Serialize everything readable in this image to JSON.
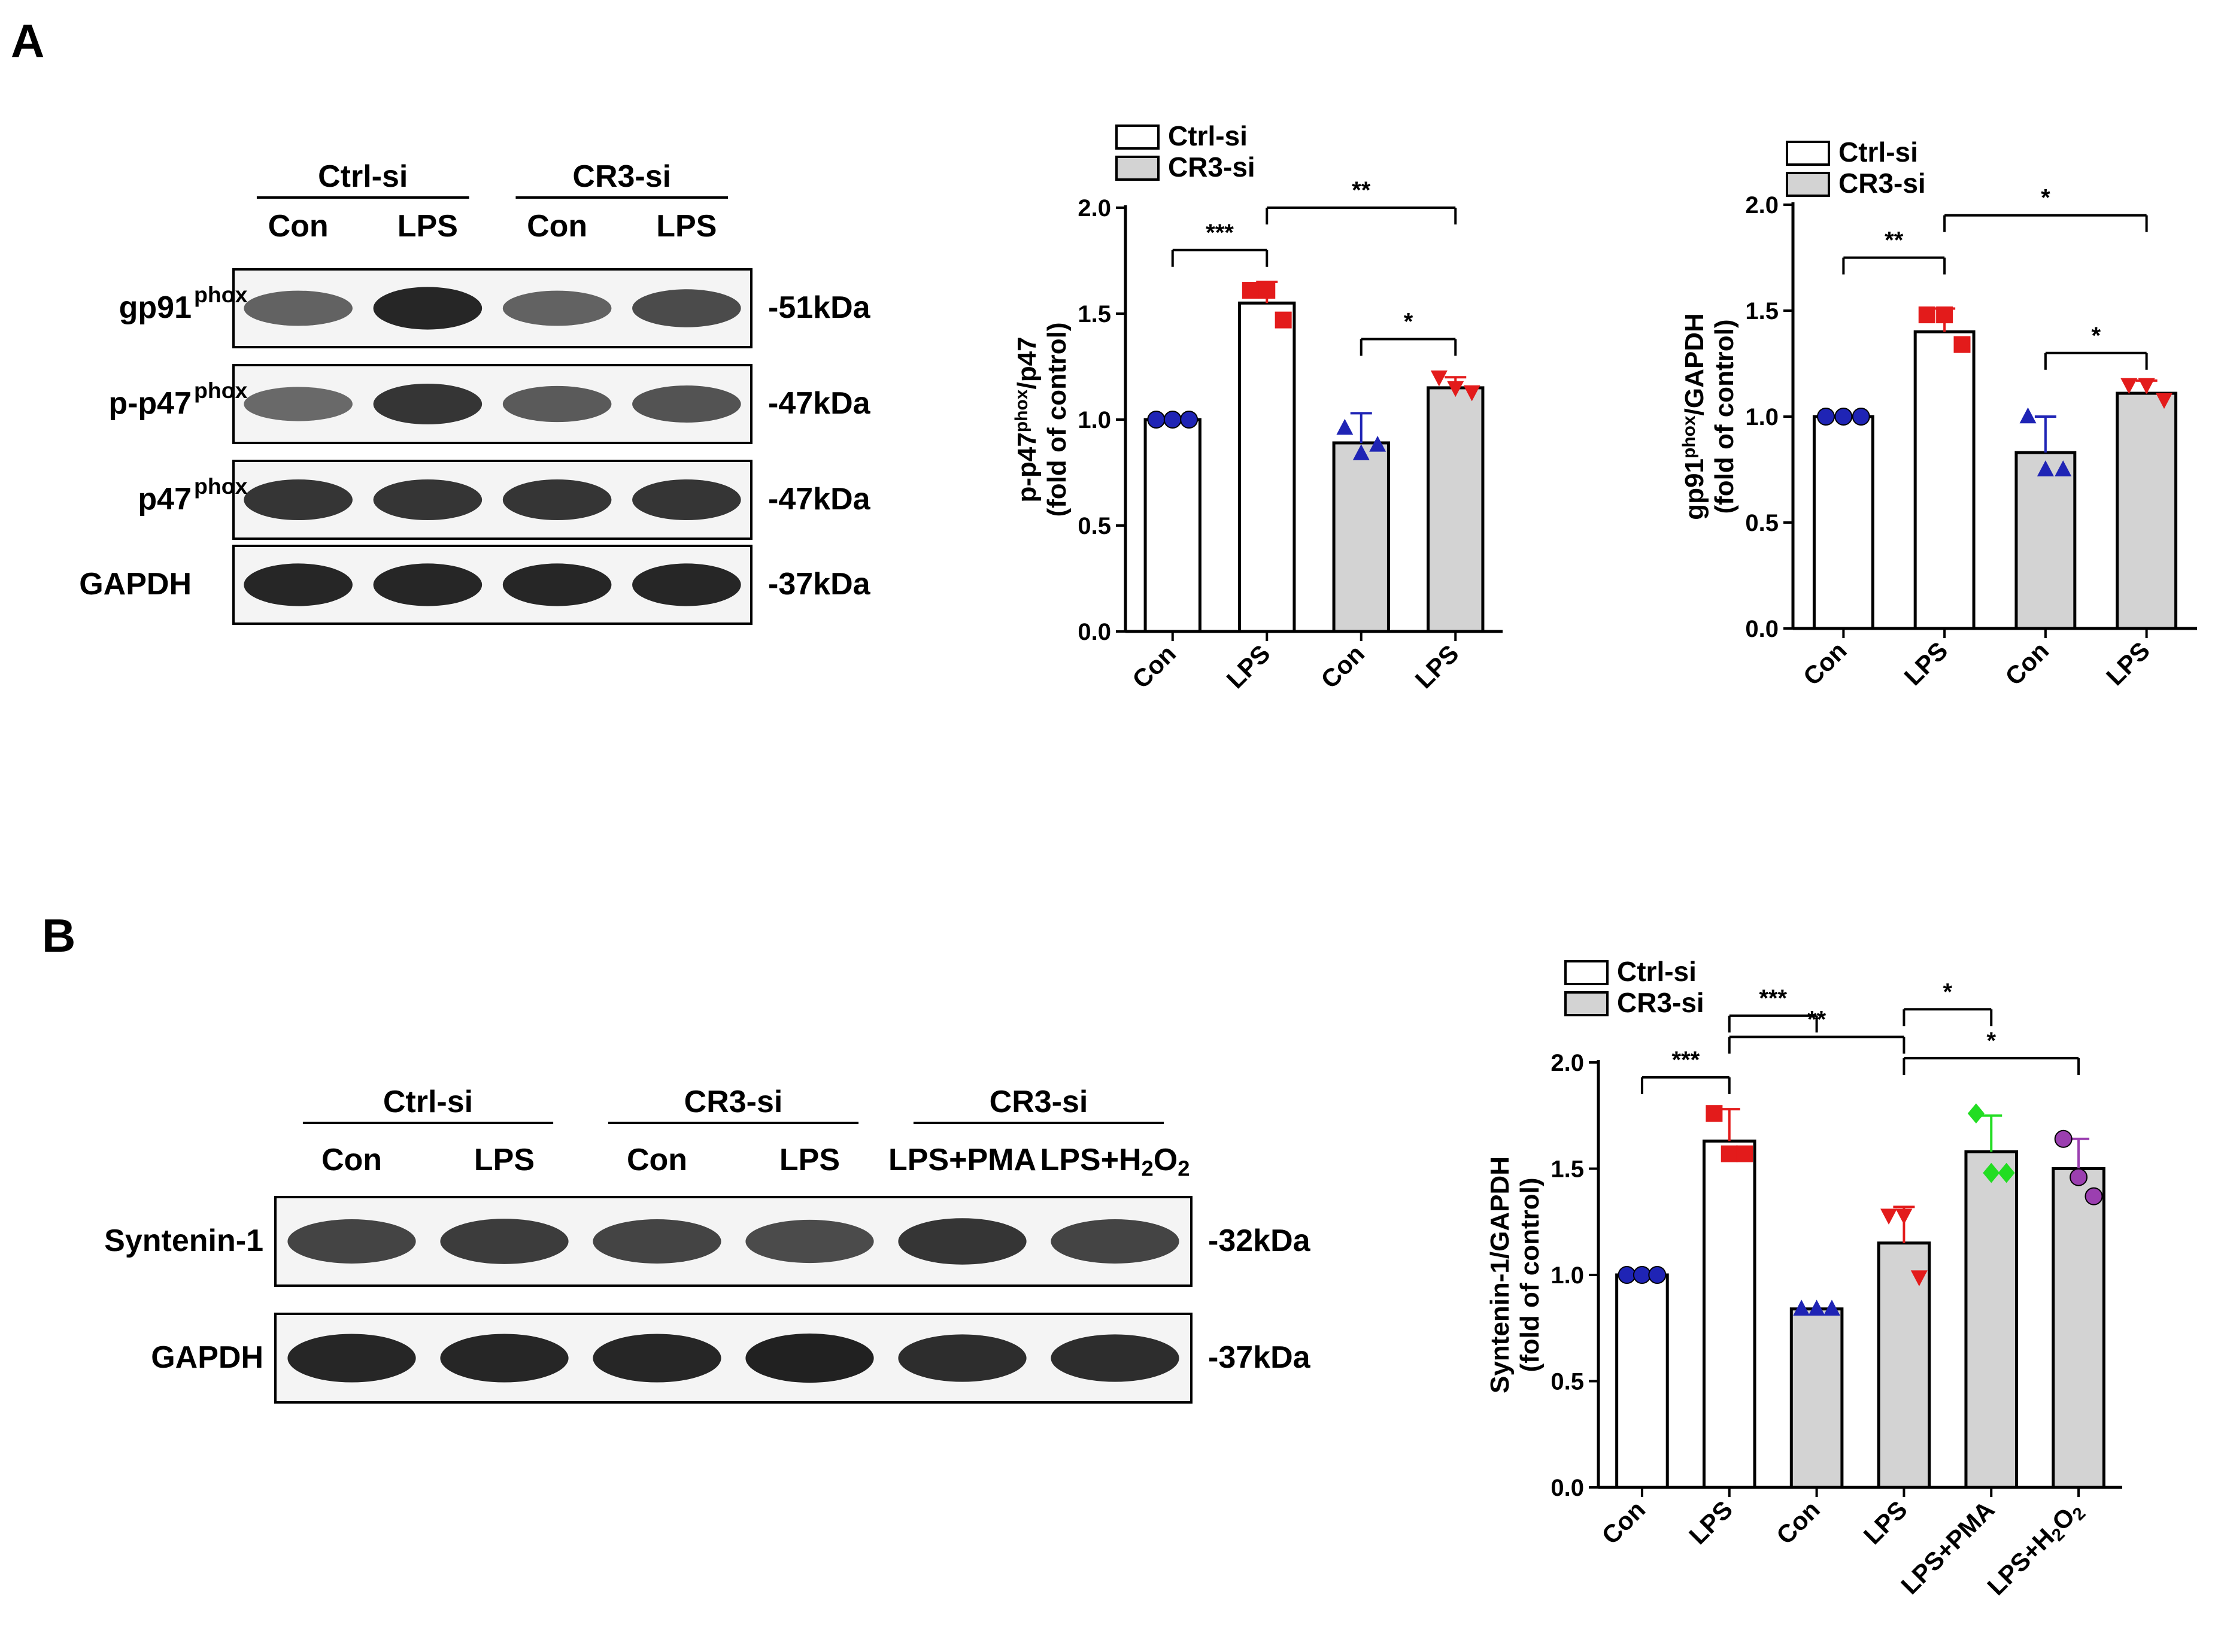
{
  "panel_a": {
    "label": "A",
    "blot": {
      "groups": [
        {
          "name": "Ctrl-si",
          "lanes": [
            "Con",
            "LPS"
          ]
        },
        {
          "name": "CR3-si",
          "lanes": [
            "Con",
            "LPS"
          ]
        }
      ],
      "rows": [
        {
          "protein": "gp91",
          "superscript": "phox",
          "kda": "-51kDa",
          "intensity": [
            0.55,
            0.95,
            0.55,
            0.7
          ]
        },
        {
          "protein": "p-p47",
          "superscript": "phox",
          "kda": "-47kDa",
          "intensity": [
            0.5,
            0.85,
            0.6,
            0.65
          ]
        },
        {
          "protein": "p47",
          "superscript": "phox",
          "kda": "-47kDa",
          "intensity": [
            0.85,
            0.85,
            0.85,
            0.85
          ]
        },
        {
          "protein": "GAPDH",
          "superscript": "",
          "kda": "-37kDa",
          "intensity": [
            0.95,
            0.95,
            0.95,
            0.95
          ]
        }
      ]
    }
  },
  "panel_b": {
    "label": "B",
    "blot": {
      "groups": [
        {
          "name": "Ctrl-si",
          "lanes": [
            "Con",
            "LPS"
          ]
        },
        {
          "name": "CR3-si",
          "lanes": [
            "Con",
            "LPS"
          ]
        },
        {
          "name": "CR3-si",
          "lanes": [
            "LPS+PMA",
            "LPS+H2O2"
          ]
        }
      ],
      "rows": [
        {
          "protein": "Syntenin-1",
          "superscript": "",
          "kda": "-32kDa",
          "intensity": [
            0.75,
            0.8,
            0.75,
            0.7,
            0.85,
            0.75
          ]
        },
        {
          "protein": "GAPDH",
          "superscript": "",
          "kda": "-37kDa",
          "intensity": [
            0.95,
            0.95,
            0.95,
            0.98,
            0.9,
            0.9
          ]
        }
      ]
    }
  },
  "chart_data": [
    {
      "type": "bar",
      "ylabel_lines": [
        "p-p47phox/p47",
        "(fold of control)"
      ],
      "categories": [
        "Con",
        "LPS",
        "Con",
        "LPS"
      ],
      "groups": [
        "Ctrl-si",
        "Ctrl-si",
        "CR3-si",
        "CR3-si"
      ],
      "values": [
        1.0,
        1.55,
        0.89,
        1.15
      ],
      "errors": [
        0.0,
        0.1,
        0.14,
        0.05
      ],
      "points": [
        [
          1.0,
          1.0,
          1.0
        ],
        [
          1.61,
          1.61,
          1.47
        ],
        [
          0.96,
          0.84,
          0.88
        ],
        [
          1.2,
          1.15,
          1.13
        ]
      ],
      "markers": [
        "circle",
        "square",
        "triangle-up",
        "triangle-down"
      ],
      "marker_colors": [
        "#1f24b5",
        "#e31b1b",
        "#1f24b5",
        "#e31b1b"
      ],
      "ylim": [
        0,
        2.0
      ],
      "yticks": [
        "0.0",
        "0.5",
        "1.0",
        "1.5",
        "2.0"
      ],
      "legend": [
        {
          "label": "Ctrl-si",
          "fill": "#ffffff"
        },
        {
          "label": "CR3-si",
          "fill": "#d3d3d3"
        }
      ],
      "legend_position": "top-left",
      "significance": [
        {
          "from": 0,
          "to": 1,
          "label": "***",
          "y": 1.8
        },
        {
          "from": 1,
          "to": 3,
          "label": "**",
          "y": 2.0
        },
        {
          "from": 2,
          "to": 3,
          "label": "*",
          "y": 1.38
        }
      ]
    },
    {
      "type": "bar",
      "ylabel_lines": [
        "gp91phox/GAPDH",
        "(fold of control)"
      ],
      "categories": [
        "Con",
        "LPS",
        "Con",
        "LPS"
      ],
      "groups": [
        "Ctrl-si",
        "Ctrl-si",
        "CR3-si",
        "CR3-si"
      ],
      "values": [
        1.0,
        1.4,
        0.83,
        1.11
      ],
      "errors": [
        0.0,
        0.11,
        0.17,
        0.06
      ],
      "points": [
        [
          1.0,
          1.0,
          1.0
        ],
        [
          1.48,
          1.48,
          1.34
        ],
        [
          1.0,
          0.75,
          0.75
        ],
        [
          1.15,
          1.15,
          1.08
        ]
      ],
      "markers": [
        "circle",
        "square",
        "triangle-up",
        "triangle-down"
      ],
      "marker_colors": [
        "#1f24b5",
        "#e31b1b",
        "#1f24b5",
        "#e31b1b"
      ],
      "ylim": [
        0,
        2.0
      ],
      "yticks": [
        "0.0",
        "0.5",
        "1.0",
        "1.5",
        "2.0"
      ],
      "legend": [
        {
          "label": "Ctrl-si",
          "fill": "#ffffff"
        },
        {
          "label": "CR3-si",
          "fill": "#d3d3d3"
        }
      ],
      "legend_position": "top-left",
      "significance": [
        {
          "from": 0,
          "to": 1,
          "label": "**",
          "y": 1.75
        },
        {
          "from": 1,
          "to": 3,
          "label": "*",
          "y": 1.95
        },
        {
          "from": 2,
          "to": 3,
          "label": "*",
          "y": 1.3
        }
      ]
    },
    {
      "type": "bar",
      "ylabel_lines": [
        "Syntenin-1/GAPDH",
        "(fold of control)"
      ],
      "categories": [
        "Con",
        "LPS",
        "Con",
        "LPS",
        "LPS+PMA",
        "LPS+H2O2"
      ],
      "groups": [
        "Ctrl-si",
        "Ctrl-si",
        "CR3-si",
        "CR3-si",
        "CR3-si",
        "CR3-si"
      ],
      "values": [
        1.0,
        1.63,
        0.84,
        1.15,
        1.58,
        1.5
      ],
      "errors": [
        0.0,
        0.15,
        0.0,
        0.17,
        0.17,
        0.14
      ],
      "points": [
        [
          1.0,
          1.0,
          1.0
        ],
        [
          1.76,
          1.57,
          1.57
        ],
        [
          0.84,
          0.84,
          0.84
        ],
        [
          1.28,
          1.28,
          0.99
        ],
        [
          1.76,
          1.48,
          1.48
        ],
        [
          1.64,
          1.46,
          1.37
        ]
      ],
      "markers": [
        "circle",
        "square",
        "triangle-up",
        "triangle-down",
        "diamond",
        "circle"
      ],
      "marker_colors": [
        "#1f24b5",
        "#e31b1b",
        "#1f24b5",
        "#e31b1b",
        "#22dd22",
        "#9b3fb0"
      ],
      "ylim": [
        0,
        2.0
      ],
      "yticks": [
        "0.0",
        "0.5",
        "1.0",
        "1.5",
        "2.0"
      ],
      "legend": [
        {
          "label": "Ctrl-si",
          "fill": "#ffffff"
        },
        {
          "label": "CR3-si",
          "fill": "#d3d3d3"
        }
      ],
      "legend_position": "top-left",
      "significance": [
        {
          "from": 0,
          "to": 1,
          "label": "***",
          "y": 1.93
        },
        {
          "from": 1,
          "to": 2,
          "label": "***",
          "y": 2.22
        },
        {
          "from": 1,
          "to": 3,
          "label": "**",
          "y": 2.12
        },
        {
          "from": 3,
          "to": 4,
          "label": "*",
          "y": 2.25
        },
        {
          "from": 3,
          "to": 5,
          "label": "*",
          "y": 2.02
        }
      ]
    }
  ]
}
